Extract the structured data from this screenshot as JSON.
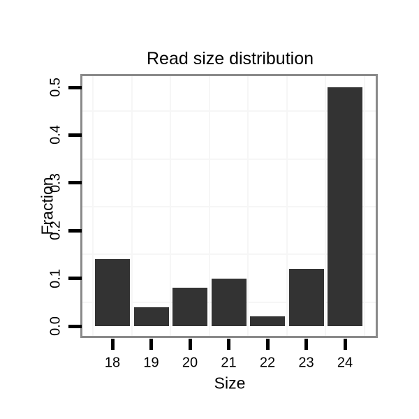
{
  "chart_data": {
    "type": "bar",
    "title": "Read size distribution",
    "xlabel": "Size",
    "ylabel": "Fraction",
    "categories": [
      "18",
      "19",
      "20",
      "21",
      "22",
      "23",
      "24"
    ],
    "values": [
      0.14,
      0.04,
      0.08,
      0.1,
      0.02,
      0.12,
      0.5
    ],
    "y_tick_values": [
      0.0,
      0.1,
      0.2,
      0.3,
      0.4,
      0.5
    ],
    "y_tick_labels": [
      "0.0",
      "0.1",
      "0.2",
      "0.3",
      "0.4",
      "0.5"
    ],
    "ylim": [
      -0.025,
      0.525
    ],
    "grid": "faint gridlines offset midway between ticks and at category boundaries",
    "legend_position": "none",
    "colors": {
      "bar": "#333333",
      "panel_border": "#8a8a8a",
      "gridline": "#f6f6f6",
      "tick": "#000000",
      "text": "#000000",
      "background": "#ffffff"
    }
  }
}
